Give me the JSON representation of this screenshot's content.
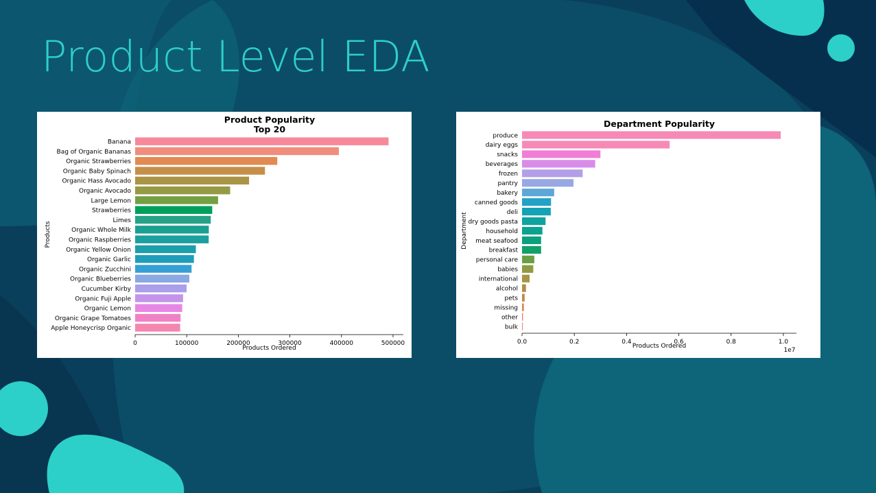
{
  "slide": {
    "title": "Product Level EDA"
  },
  "colors": {
    "background": "#0a3f5c",
    "accent": "#2dcfc9",
    "blob_mid": "#0e6478",
    "blob_dark": "#062f4d"
  },
  "chart_data": [
    {
      "type": "bar",
      "orientation": "horizontal",
      "title": "Product Popularity",
      "subtitle": "Top 20",
      "xlabel": "Products Ordered",
      "ylabel": "Products",
      "xlim": [
        0,
        520000
      ],
      "xticks": [
        0,
        100000,
        200000,
        300000,
        400000,
        500000
      ],
      "xtick_labels": [
        "0",
        "100000",
        "200000",
        "300000",
        "400000",
        "500000"
      ],
      "grid": false,
      "categories": [
        "Banana",
        "Bag of Organic Bananas",
        "Organic Strawberries",
        "Organic Baby Spinach",
        "Organic Hass Avocado",
        "Organic Avocado",
        "Large Lemon",
        "Strawberries",
        "Limes",
        "Organic Whole Milk",
        "Organic Raspberries",
        "Organic Yellow Onion",
        "Organic Garlic",
        "Organic Zucchini",
        "Organic Blueberries",
        "Cucumber Kirby",
        "Organic Fuji Apple",
        "Organic Lemon",
        "Organic Grape Tomatoes",
        "Apple Honeycrisp Organic"
      ],
      "values": [
        491291,
        394930,
        275577,
        251705,
        220877,
        184224,
        160792,
        149445,
        146660,
        142813,
        142603,
        117716,
        113936,
        109412,
        105026,
        99728,
        92889,
        91251,
        88078,
        87272
      ],
      "colors": [
        "#f7889a",
        "#f08d7c",
        "#e18a52",
        "#c58f4a",
        "#aa9446",
        "#969a45",
        "#759f43",
        "#00a05c",
        "#27a287",
        "#19a091",
        "#1aa09e",
        "#1c9fab",
        "#1f9dba",
        "#35a0d3",
        "#8aa8e3",
        "#ab9eea",
        "#c493ea",
        "#e787e4",
        "#f181c6",
        "#f487b0"
      ]
    },
    {
      "type": "bar",
      "orientation": "horizontal",
      "title": "Department Popularity",
      "xlabel": "Products Ordered",
      "ylabel": "Department",
      "xlim": [
        0,
        10500000
      ],
      "xticks": [
        0,
        2000000,
        4000000,
        6000000,
        8000000,
        10000000
      ],
      "xtick_labels": [
        "0.0",
        "0.2",
        "0.4",
        "0.6",
        "0.8",
        "1.0"
      ],
      "scale_label": "1e7",
      "grid": false,
      "categories": [
        "produce",
        "dairy eggs",
        "snacks",
        "beverages",
        "frozen",
        "pantry",
        "bakery",
        "canned goods",
        "deli",
        "dry goods pasta",
        "household",
        "meat seafood",
        "breakfast",
        "personal care",
        "babies",
        "international",
        "alcohol",
        "pets",
        "missing",
        "other",
        "bulk"
      ],
      "values": [
        9900000,
        5650000,
        3000000,
        2800000,
        2320000,
        1970000,
        1230000,
        1110000,
        1100000,
        900000,
        780000,
        730000,
        730000,
        470000,
        430000,
        290000,
        150000,
        100000,
        70000,
        35000,
        30000
      ],
      "colors": [
        "#f68ab6",
        "#f68ab6",
        "#f07ed7",
        "#d88ce8",
        "#b59ee8",
        "#97a8e3",
        "#5da7d7",
        "#24a2c5",
        "#14a2b5",
        "#0ea39e",
        "#0aa38f",
        "#0da07d",
        "#12a06a",
        "#68a046",
        "#8f9b40",
        "#a59642",
        "#b08e45",
        "#c28748",
        "#d8855a",
        "#e47f72",
        "#ea8686"
      ]
    }
  ]
}
